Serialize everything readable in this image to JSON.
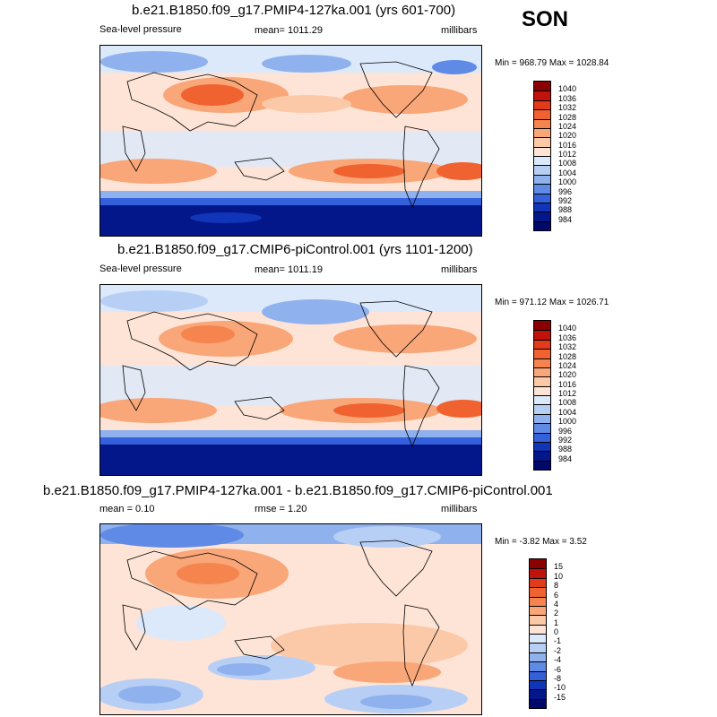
{
  "season": "SON",
  "panels": [
    {
      "id": "p1",
      "title": "b.e21.B1850.f09_g17.PMIP4-127ka.001 (yrs 601-700)",
      "left_label": "Sea-level pressure",
      "center_label": "mean= 1011.29",
      "right_label": "millibars",
      "minmax": "Min = 968.79 Max = 1028.84",
      "kind": "abs"
    },
    {
      "id": "p2",
      "title": "b.e21.B1850.f09_g17.CMIP6-piControl.001 (yrs 1101-1200)",
      "left_label": "Sea-level pressure",
      "center_label": "mean= 1011.19",
      "right_label": "millibars",
      "minmax": "Min = 971.12 Max = 1026.71",
      "kind": "abs"
    },
    {
      "id": "p3",
      "title": "b.e21.B1850.f09_g17.PMIP4-127ka.001 - b.e21.B1850.f09_g17.CMIP6-piControl.001",
      "left_label": "mean =  0.10",
      "center_label": "rmse =  1.20",
      "right_label": "millibars",
      "minmax": "Min =  -3.82 Max =   3.52",
      "kind": "diff"
    }
  ],
  "colorbars": {
    "abs": {
      "labels": [
        "1040",
        "1036",
        "1032",
        "1028",
        "1024",
        "1020",
        "1016",
        "1012",
        "1008",
        "1004",
        "1000",
        "996",
        "992",
        "988",
        "984"
      ],
      "colors": [
        "#8b0000",
        "#c1120b",
        "#e23a1a",
        "#f0622f",
        "#f5844f",
        "#f9a678",
        "#fcc9a8",
        "#fde4d6",
        "#dbe9fb",
        "#b8cff5",
        "#8fb1ee",
        "#5f8ae6",
        "#3461db",
        "#1035b8",
        "#04178a",
        "#00086a"
      ]
    },
    "diff": {
      "labels": [
        "15",
        "10",
        "8",
        "6",
        "4",
        "2",
        "1",
        "0",
        "-1",
        "-2",
        "-4",
        "-6",
        "-8",
        "-10",
        "-15"
      ],
      "colors": [
        "#8b0000",
        "#c1120b",
        "#e23a1a",
        "#f0622f",
        "#f5844f",
        "#f9a678",
        "#fcc9a8",
        "#fde4d6",
        "#dbe9fb",
        "#b8cff5",
        "#8fb1ee",
        "#5f8ae6",
        "#3461db",
        "#1035b8",
        "#04178a",
        "#00086a"
      ]
    }
  }
}
